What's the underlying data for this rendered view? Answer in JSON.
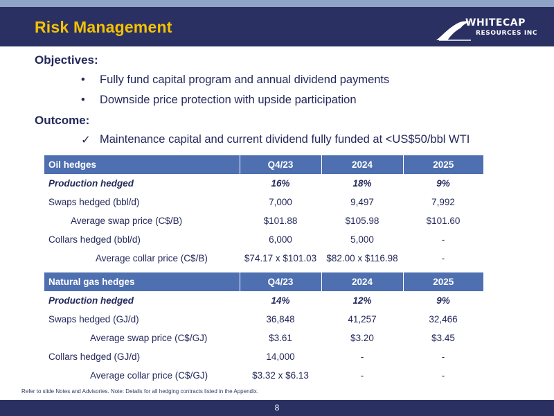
{
  "header": {
    "title": "Risk Management",
    "logo_line1": "WHITECAP",
    "logo_line2": "RESOURCES INC"
  },
  "objectives": {
    "heading": "Objectives:",
    "items": [
      "Fully fund capital program and annual dividend payments",
      "Downside price protection with upside participation"
    ]
  },
  "outcome": {
    "heading": "Outcome:",
    "items": [
      "Maintenance capital and current dividend fully funded at <US$50/bbl WTI"
    ]
  },
  "oil": {
    "headers": [
      "Oil hedges",
      "Q4/23",
      "2024",
      "2025"
    ],
    "rows": [
      [
        "Production hedged",
        "16%",
        "18%",
        "9%"
      ],
      [
        "Swaps hedged (bbl/d)",
        "7,000",
        "9,497",
        "7,992"
      ],
      [
        "Average swap price (C$/B)",
        "$101.88",
        "$105.98",
        "$101.60"
      ],
      [
        "Collars hedged (bbl/d)",
        "6,000",
        "5,000",
        "-"
      ],
      [
        "Average collar price (C$/B)",
        "$74.17 x $101.03",
        "$82.00 x $116.98",
        "-"
      ]
    ]
  },
  "gas": {
    "headers": [
      "Natural gas hedges",
      "Q4/23",
      "2024",
      "2025"
    ],
    "rows": [
      [
        "Production hedged",
        "14%",
        "12%",
        "9%"
      ],
      [
        "Swaps hedged (GJ/d)",
        "36,848",
        "41,257",
        "32,466"
      ],
      [
        "Average swap price (C$/GJ)",
        "$3.61",
        "$3.20",
        "$3.45"
      ],
      [
        "Collars hedged (GJ/d)",
        "14,000",
        "-",
        "-"
      ],
      [
        "Average collar price (C$/GJ)",
        "$3.32 x $6.13",
        "-",
        "-"
      ]
    ]
  },
  "footnote": "Refer to slide Notes and Advisories. Note: Details for all hedging contracts listed in the Appendix.",
  "page_number": "8",
  "colors": {
    "header_bg": "#2a3062",
    "title": "#f5c200",
    "table_header": "#4e6fb0",
    "text": "#23285a"
  }
}
